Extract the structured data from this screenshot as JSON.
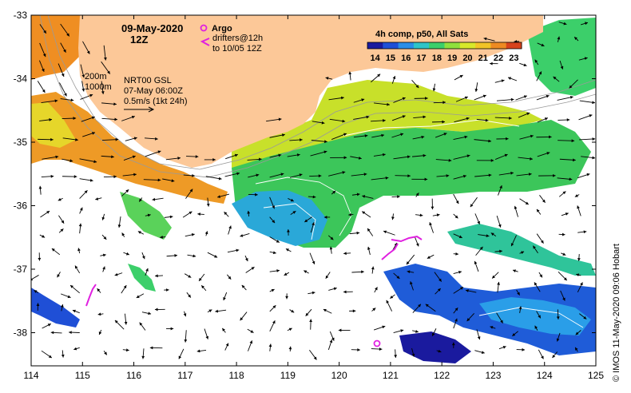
{
  "header": {
    "date": "09-May-2020",
    "time": "12Z",
    "argo_label": "Argo",
    "drifters_line1": "drifters@12h",
    "drifters_line2": "to 10/05 12Z"
  },
  "legend": {
    "title": "4h comp, p50, All Sats",
    "ticks": [
      "14",
      "15",
      "16",
      "17",
      "18",
      "19",
      "20",
      "21",
      "22",
      "23"
    ],
    "colors": [
      "#1a1a9e",
      "#1f4fd6",
      "#2a8ee8",
      "#2fc4c8",
      "#3ccf6a",
      "#8fe03c",
      "#d8e82a",
      "#f2c427",
      "#ee8a22",
      "#d8431c"
    ]
  },
  "notes": {
    "iso1": "200m",
    "iso2": "1000m",
    "model": "NRT00 GSL",
    "model_time": "07-May 06:00Z",
    "scale": "0.5m/s (1kt 24h)"
  },
  "axes": {
    "x_ticks": [
      "114",
      "115",
      "116",
      "117",
      "118",
      "119",
      "120",
      "121",
      "122",
      "123",
      "124",
      "125"
    ],
    "y_ticks": [
      "-33",
      "-34",
      "-35",
      "-36",
      "-37",
      "-38"
    ]
  },
  "credit": "© IMOS 11-May-2020 09:06 Hobart",
  "colors": {
    "land": "#fcc898",
    "magenta": "#e020e0"
  }
}
